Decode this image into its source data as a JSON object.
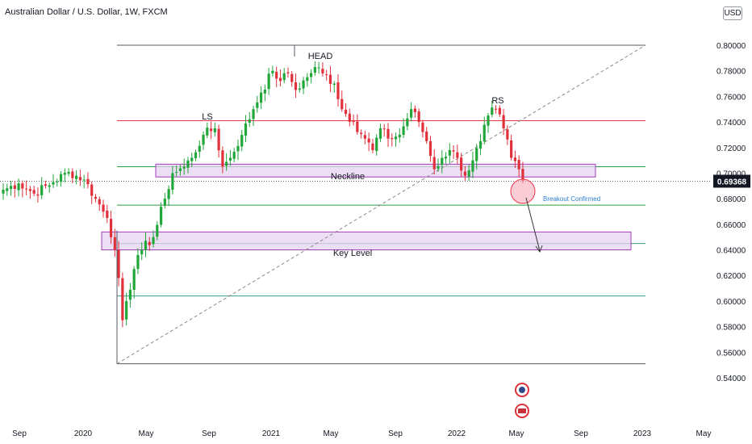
{
  "header": {
    "title": "Australian Dollar / U.S. Dollar, 1W, FXCM",
    "currency": "USD"
  },
  "last_price_label": "0.69368",
  "annotations": {
    "head": "HEAD",
    "left_shoulder": "LS",
    "right_shoulder": "RS",
    "neckline": "Neckline",
    "key_level": "Key Level",
    "breakout": "Breakout Confirmed"
  },
  "colors": {
    "up": "#21a63a",
    "down": "#e0313b",
    "zone_fill": "#e6d3f0",
    "zone_border": "#a23cb9",
    "red_line": "#e8364a",
    "green_line": "#2e9e42",
    "teal_line": "#3b9b8a",
    "gray_line": "#555a63",
    "breakout_text": "#2e7cc9",
    "breakout_circle": "#f7aabb"
  },
  "chart_data": {
    "type": "candlestick",
    "title": "Australian Dollar / U.S. Dollar, 1W, FXCM",
    "ylim": [
      0.53,
      0.82
    ],
    "y_ticks": [
      "0.80000",
      "0.78000",
      "0.76000",
      "0.74000",
      "0.72000",
      "0.70000",
      "0.68000",
      "0.66000",
      "0.64000",
      "0.62000",
      "0.60000",
      "0.58000",
      "0.56000",
      "0.54000"
    ],
    "x_ticks": [
      "Sep",
      "2020",
      "May",
      "Sep",
      "2021",
      "May",
      "Sep",
      "2022",
      "May",
      "Sep",
      "2023",
      "May"
    ],
    "last_price": 0.69368,
    "horizontal_levels": [
      {
        "price": 0.8,
        "role": "top-line",
        "color": "gray"
      },
      {
        "price": 0.741,
        "role": "level",
        "color": "red"
      },
      {
        "price": 0.705,
        "role": "level",
        "color": "green"
      },
      {
        "price": 0.675,
        "role": "level",
        "color": "green"
      },
      {
        "price": 0.645,
        "role": "level",
        "color": "teal"
      },
      {
        "price": 0.604,
        "role": "level",
        "color": "teal"
      },
      {
        "price": 0.551,
        "role": "bottom-line",
        "color": "gray"
      }
    ],
    "zones": [
      {
        "label": "Neckline",
        "from": 0.697,
        "to": 0.707
      },
      {
        "label": "Key Level",
        "from": 0.64,
        "to": 0.654
      }
    ],
    "trendline": {
      "from": 0.551,
      "to": 0.8,
      "style": "dashed"
    },
    "anchors": [
      {
        "t": 0,
        "price": 0.687
      },
      {
        "t": 4,
        "price": 0.692
      },
      {
        "t": 8,
        "price": 0.684
      },
      {
        "t": 13,
        "price": 0.693
      },
      {
        "t": 17,
        "price": 0.701
      },
      {
        "t": 21,
        "price": 0.695
      },
      {
        "t": 24,
        "price": 0.68
      },
      {
        "t": 27,
        "price": 0.665
      },
      {
        "t": 29,
        "price": 0.64
      },
      {
        "t": 30,
        "price": 0.618
      },
      {
        "t": 31,
        "price": 0.585
      },
      {
        "t": 32,
        "price": 0.6
      },
      {
        "t": 34,
        "price": 0.625
      },
      {
        "t": 36,
        "price": 0.64
      },
      {
        "t": 39,
        "price": 0.65
      },
      {
        "t": 42,
        "price": 0.68
      },
      {
        "t": 44,
        "price": 0.7
      },
      {
        "t": 47,
        "price": 0.705
      },
      {
        "t": 49,
        "price": 0.712
      },
      {
        "t": 52,
        "price": 0.73
      },
      {
        "t": 55,
        "price": 0.735
      },
      {
        "t": 57,
        "price": 0.705
      },
      {
        "t": 59,
        "price": 0.712
      },
      {
        "t": 62,
        "price": 0.73
      },
      {
        "t": 65,
        "price": 0.75
      },
      {
        "t": 67,
        "price": 0.763
      },
      {
        "t": 70,
        "price": 0.78
      },
      {
        "t": 72,
        "price": 0.772
      },
      {
        "t": 74,
        "price": 0.778
      },
      {
        "t": 76,
        "price": 0.765
      },
      {
        "t": 79,
        "price": 0.775
      },
      {
        "t": 81,
        "price": 0.783
      },
      {
        "t": 83,
        "price": 0.778
      },
      {
        "t": 86,
        "price": 0.77
      },
      {
        "t": 88,
        "price": 0.75
      },
      {
        "t": 91,
        "price": 0.74
      },
      {
        "t": 94,
        "price": 0.727
      },
      {
        "t": 96,
        "price": 0.718
      },
      {
        "t": 98,
        "price": 0.735
      },
      {
        "t": 100,
        "price": 0.727
      },
      {
        "t": 103,
        "price": 0.73
      },
      {
        "t": 106,
        "price": 0.75
      },
      {
        "t": 108,
        "price": 0.74
      },
      {
        "t": 110,
        "price": 0.725
      },
      {
        "t": 112,
        "price": 0.703
      },
      {
        "t": 114,
        "price": 0.712
      },
      {
        "t": 116,
        "price": 0.718
      },
      {
        "t": 118,
        "price": 0.712
      },
      {
        "t": 120,
        "price": 0.698
      },
      {
        "t": 122,
        "price": 0.71
      },
      {
        "t": 124,
        "price": 0.725
      },
      {
        "t": 126,
        "price": 0.745
      },
      {
        "t": 128,
        "price": 0.75
      },
      {
        "t": 130,
        "price": 0.735
      },
      {
        "t": 132,
        "price": 0.712
      },
      {
        "t": 134,
        "price": 0.703
      },
      {
        "t": 135,
        "price": 0.694
      }
    ]
  }
}
